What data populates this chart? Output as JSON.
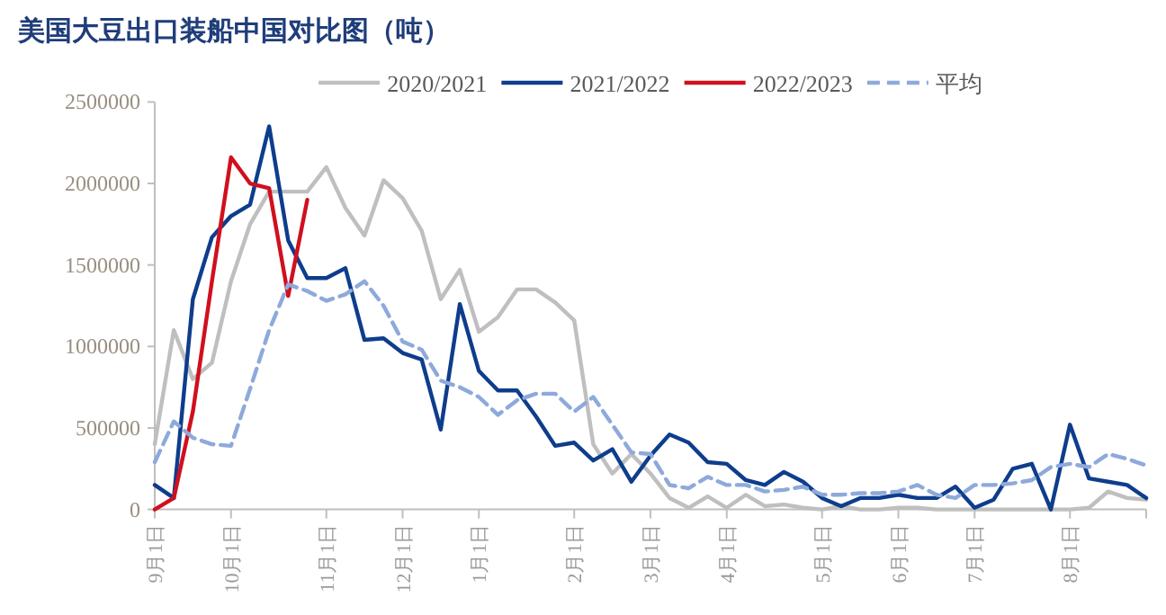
{
  "chart_data": {
    "type": "line",
    "title": "美国大豆出口装船中国对比图（吨）",
    "legend": "top",
    "categories": [
      "9月1日",
      null,
      null,
      null,
      "10月1日",
      null,
      null,
      null,
      null,
      "11月1日",
      null,
      null,
      null,
      "12月1日",
      null,
      null,
      null,
      "1月1日",
      null,
      null,
      null,
      null,
      "2月1日",
      null,
      null,
      null,
      "3月1日",
      null,
      null,
      null,
      "4月1日",
      null,
      null,
      null,
      null,
      "5月1日",
      null,
      null,
      null,
      "6月1日",
      null,
      null,
      null,
      "7月1日",
      null,
      null,
      null,
      null,
      "8月1日",
      null,
      null,
      null,
      null
    ],
    "ylim": [
      0,
      2500000
    ],
    "yticks": [
      0,
      500000,
      1000000,
      1500000,
      2000000,
      2500000
    ],
    "series": [
      {
        "name": "2020/2021",
        "color": "#bfbfbf",
        "line_style": "solid",
        "values": [
          400000,
          1100000,
          800000,
          900000,
          1400000,
          1750000,
          1950000,
          1950000,
          1950000,
          2100000,
          1850000,
          1680000,
          2020000,
          1910000,
          1710000,
          1290000,
          1470000,
          1090000,
          1180000,
          1350000,
          1350000,
          1270000,
          1160000,
          400000,
          220000,
          340000,
          220000,
          70000,
          10000,
          80000,
          10000,
          90000,
          20000,
          30000,
          10000,
          0,
          20000,
          0,
          0,
          10000,
          10000,
          0,
          0,
          0,
          0,
          0,
          0,
          0,
          0,
          10000,
          110000,
          70000,
          60000
        ]
      },
      {
        "name": "2021/2022",
        "color": "#0e3d8c",
        "line_style": "solid",
        "values": [
          150000,
          70000,
          1290000,
          1670000,
          1800000,
          1870000,
          2350000,
          1650000,
          1420000,
          1420000,
          1480000,
          1040000,
          1050000,
          960000,
          920000,
          490000,
          1260000,
          850000,
          730000,
          730000,
          570000,
          390000,
          410000,
          300000,
          370000,
          170000,
          330000,
          460000,
          410000,
          290000,
          280000,
          180000,
          150000,
          230000,
          170000,
          70000,
          20000,
          70000,
          70000,
          90000,
          70000,
          70000,
          140000,
          10000,
          60000,
          250000,
          280000,
          0,
          520000,
          190000,
          170000,
          150000,
          70000
        ]
      },
      {
        "name": "2022/2023",
        "color": "#d0101e",
        "line_style": "solid",
        "values": [
          0,
          70000,
          600000,
          1400000,
          2160000,
          2000000,
          1970000,
          1310000,
          1900000,
          null,
          null,
          null,
          null,
          null,
          null,
          null,
          null,
          null,
          null,
          null,
          null,
          null,
          null,
          null,
          null,
          null,
          null,
          null,
          null,
          null,
          null,
          null,
          null,
          null,
          null,
          null,
          null,
          null,
          null,
          null,
          null,
          null,
          null,
          null,
          null,
          null,
          null,
          null,
          null,
          null,
          null,
          null,
          null
        ]
      },
      {
        "name": "平均",
        "color": "#8ea9db",
        "line_style": "dashed",
        "values": [
          290000,
          540000,
          440000,
          400000,
          390000,
          740000,
          1100000,
          1380000,
          1340000,
          1280000,
          1320000,
          1400000,
          1250000,
          1030000,
          980000,
          790000,
          750000,
          690000,
          580000,
          670000,
          710000,
          710000,
          600000,
          690000,
          520000,
          350000,
          340000,
          150000,
          130000,
          200000,
          150000,
          150000,
          110000,
          120000,
          140000,
          90000,
          90000,
          100000,
          100000,
          110000,
          150000,
          90000,
          70000,
          150000,
          150000,
          160000,
          180000,
          260000,
          280000,
          260000,
          340000,
          310000,
          270000
        ]
      }
    ]
  }
}
